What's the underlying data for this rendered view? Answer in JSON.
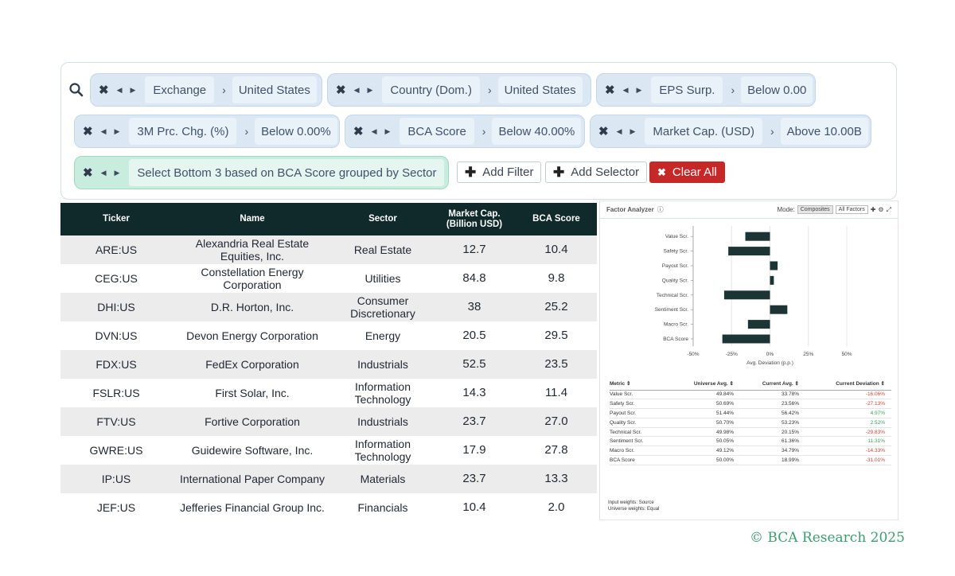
{
  "filters": [
    {
      "label": "Exchange",
      "value": "United States"
    },
    {
      "label": "Country (Dom.)",
      "value": "United States"
    },
    {
      "label": "EPS Surp.",
      "value": "Below 0.00"
    },
    {
      "label": "3M Prc. Chg. (%)",
      "value": "Below 0.00%"
    },
    {
      "label": "BCA Score",
      "value": "Below 40.00%"
    },
    {
      "label": "Market Cap. (USD)",
      "value": "Above 10.00B"
    }
  ],
  "selector": {
    "label": "Select Bottom 3 based on BCA Score grouped by Sector"
  },
  "buttons": {
    "add_filter": "Add Filter",
    "add_selector": "Add Selector",
    "clear_all": "Clear All"
  },
  "table": {
    "headers": [
      "Ticker",
      "Name",
      "Sector",
      "Market Cap.",
      "(Billion USD)",
      "BCA Score"
    ],
    "rows": [
      {
        "ticker": "ARE:US",
        "name1": "Alexandria Real Estate",
        "name2": "Equities, Inc.",
        "sector1": "Real Estate",
        "sector2": "",
        "cap": "12.7",
        "score": "10.4"
      },
      {
        "ticker": "CEG:US",
        "name1": "Constellation Energy",
        "name2": "Corporation",
        "sector1": "Utilities",
        "sector2": "",
        "cap": "84.8",
        "score": "9.8"
      },
      {
        "ticker": "DHI:US",
        "name1": "D.R. Horton, Inc.",
        "name2": "",
        "sector1": "Consumer",
        "sector2": "Discretionary",
        "cap": "38",
        "score": "25.2"
      },
      {
        "ticker": "DVN:US",
        "name1": "Devon Energy Corporation",
        "name2": "",
        "sector1": "Energy",
        "sector2": "",
        "cap": "20.5",
        "score": "29.5"
      },
      {
        "ticker": "FDX:US",
        "name1": "FedEx Corporation",
        "name2": "",
        "sector1": "Industrials",
        "sector2": "",
        "cap": "52.5",
        "score": "23.5"
      },
      {
        "ticker": "FSLR:US",
        "name1": "First Solar, Inc.",
        "name2": "",
        "sector1": "Information",
        "sector2": "Technology",
        "cap": "14.3",
        "score": "11.4"
      },
      {
        "ticker": "FTV:US",
        "name1": "Fortive Corporation",
        "name2": "",
        "sector1": "Industrials",
        "sector2": "",
        "cap": "23.7",
        "score": "27.0"
      },
      {
        "ticker": "GWRE:US",
        "name1": "Guidewire Software, Inc.",
        "name2": "",
        "sector1": "Information",
        "sector2": "Technology",
        "cap": "17.9",
        "score": "27.8"
      },
      {
        "ticker": "IP:US",
        "name1": "International Paper Company",
        "name2": "",
        "sector1": "Materials",
        "sector2": "",
        "cap": "23.7",
        "score": "13.3"
      },
      {
        "ticker": "JEF:US",
        "name1": "Jefferies Financial Group Inc.",
        "name2": "",
        "sector1": "Financials",
        "sector2": "",
        "cap": "10.4",
        "score": "2.0"
      }
    ]
  },
  "factor": {
    "title": "Factor Analyzer",
    "mode_label": "Mode:",
    "modes": [
      "Composites",
      "All Factors"
    ],
    "table_headers": [
      "Metric",
      "Universe Avg.",
      "Current Avg.",
      "Current Deviation"
    ],
    "rows": [
      {
        "metric": "Value Scr.",
        "uni": "49.84%",
        "cur": "33.78%",
        "dev": "-16.06%"
      },
      {
        "metric": "Safety Scr.",
        "uni": "50.69%",
        "cur": "23.56%",
        "dev": "-27.13%"
      },
      {
        "metric": "Payout Scr.",
        "uni": "51.44%",
        "cur": "56.42%",
        "dev": "4.97%"
      },
      {
        "metric": "Quality Scr.",
        "uni": "50.70%",
        "cur": "53.23%",
        "dev": "2.52%"
      },
      {
        "metric": "Technical Scr.",
        "uni": "49.98%",
        "cur": "20.15%",
        "dev": "-29.83%"
      },
      {
        "metric": "Sentiment Scr.",
        "uni": "50.05%",
        "cur": "61.36%",
        "dev": "11.31%"
      },
      {
        "metric": "Macro Scr.",
        "uni": "49.12%",
        "cur": "34.79%",
        "dev": "-14.33%"
      },
      {
        "metric": "BCA Score",
        "uni": "50.00%",
        "cur": "18.99%",
        "dev": "-31.01%"
      }
    ],
    "foot1": "Input weights: Source",
    "foot2": "Universe weights: Equal"
  },
  "chart_data": {
    "type": "bar",
    "orientation": "horizontal",
    "categories": [
      "Value Scr.",
      "Safety Scr.",
      "Payout Scr.",
      "Quality Scr.",
      "Technical Scr.",
      "Sentiment Scr.",
      "Macro Scr.",
      "BCA Score"
    ],
    "values": [
      -16.06,
      -27.13,
      4.97,
      2.52,
      -29.83,
      11.31,
      -14.33,
      -31.01
    ],
    "xlabel": "Avg. Deviation (p.p.)",
    "xticks": [
      "-50%",
      "-25%",
      "0%",
      "25%",
      "50%"
    ],
    "xlim": [
      -50,
      50
    ],
    "bar_color": "#1d3434"
  },
  "copyright": "© BCA Research 2025"
}
